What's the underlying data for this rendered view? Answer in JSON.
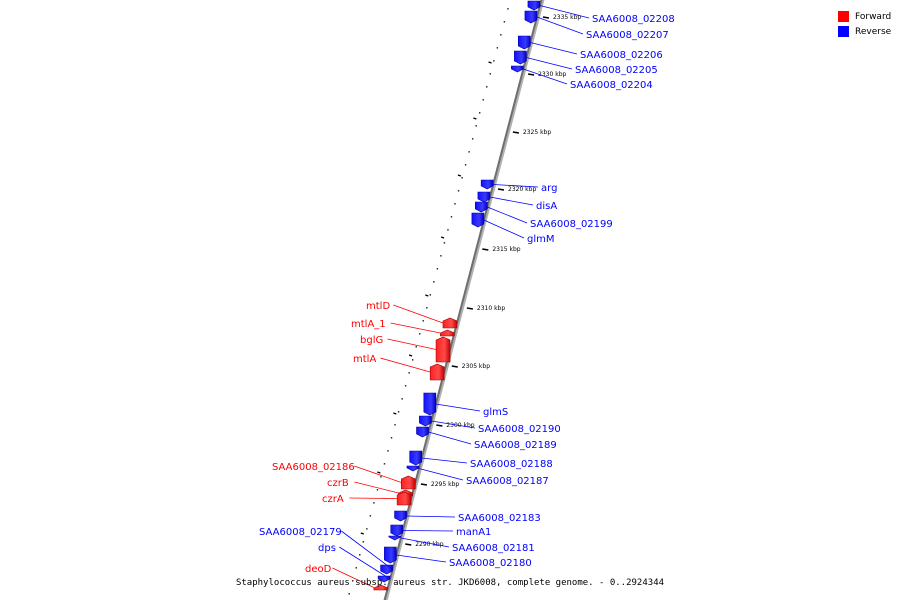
{
  "caption": "Staphylococcus aureus subsp. aureus str. JKD6008, complete genome. - 0..2924344",
  "legend": {
    "forward_label": "Forward",
    "forward_color": "#ff0000",
    "reverse_label": "Reverse",
    "reverse_color": "#0000ff"
  },
  "ticks": [
    "2335 kbp",
    "2330 kbp",
    "2325 kbp",
    "2320 kbp",
    "2315 kbp",
    "2310 kbp",
    "2305 kbp",
    "2300 kbp",
    "2295 kbp",
    "2290 kbp"
  ],
  "genes": [
    {
      "name": "SAA6008_02208",
      "strand": "reverse"
    },
    {
      "name": "SAA6008_02207",
      "strand": "reverse"
    },
    {
      "name": "SAA6008_02206",
      "strand": "reverse"
    },
    {
      "name": "SAA6008_02205",
      "strand": "reverse"
    },
    {
      "name": "SAA6008_02204",
      "strand": "reverse"
    },
    {
      "name": "arg",
      "strand": "reverse"
    },
    {
      "name": "disA",
      "strand": "reverse"
    },
    {
      "name": "SAA6008_02199",
      "strand": "reverse"
    },
    {
      "name": "glmM",
      "strand": "reverse"
    },
    {
      "name": "mtlD",
      "strand": "forward"
    },
    {
      "name": "mtlA_1",
      "strand": "forward"
    },
    {
      "name": "bglG",
      "strand": "forward"
    },
    {
      "name": "mtlA",
      "strand": "forward"
    },
    {
      "name": "glmS",
      "strand": "reverse"
    },
    {
      "name": "SAA6008_02190",
      "strand": "reverse"
    },
    {
      "name": "SAA6008_02189",
      "strand": "reverse"
    },
    {
      "name": "SAA6008_02188",
      "strand": "reverse"
    },
    {
      "name": "SAA6008_02187",
      "strand": "reverse"
    },
    {
      "name": "SAA6008_02186",
      "strand": "forward"
    },
    {
      "name": "czrB",
      "strand": "forward"
    },
    {
      "name": "czrA",
      "strand": "forward"
    },
    {
      "name": "SAA6008_02183",
      "strand": "reverse"
    },
    {
      "name": "manA1",
      "strand": "reverse"
    },
    {
      "name": "SAA6008_02181",
      "strand": "reverse"
    },
    {
      "name": "SAA6008_02180",
      "strand": "reverse"
    },
    {
      "name": "SAA6008_02179",
      "strand": "reverse"
    },
    {
      "name": "dps",
      "strand": "reverse"
    },
    {
      "name": "deoD",
      "strand": "forward"
    }
  ]
}
